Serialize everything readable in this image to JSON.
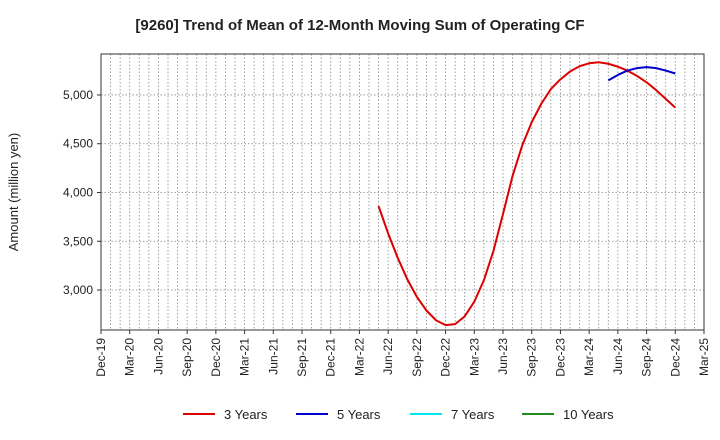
{
  "chart_data": {
    "type": "line",
    "title": "[9260]  Trend of Mean of 12-Month Moving Sum of Operating CF",
    "ylabel": "Amount (million yen)",
    "xlabel": "",
    "ylim": [
      2590,
      5420
    ],
    "yticks": [
      3000,
      3500,
      4000,
      4500,
      5000
    ],
    "ytick_labels": [
      "3,000",
      "3,500",
      "4,000",
      "4,500",
      "5,000"
    ],
    "x_start": "Dec-19",
    "x_end": "Mar-25",
    "x_tick_labels": [
      "Dec-19",
      "Mar-20",
      "Jun-20",
      "Sep-20",
      "Dec-20",
      "Mar-21",
      "Jun-21",
      "Sep-21",
      "Dec-21",
      "Mar-22",
      "Jun-22",
      "Sep-22",
      "Dec-22",
      "Mar-23",
      "Jun-23",
      "Sep-23",
      "Dec-23",
      "Mar-24",
      "Jun-24",
      "Sep-24",
      "Dec-24",
      "Mar-25"
    ],
    "grid": true,
    "legend_position": "bottom",
    "series": [
      {
        "name": "3 Years",
        "color": "#dd0000",
        "x": [
          "May-22",
          "Jun-22",
          "Jul-22",
          "Aug-22",
          "Sep-22",
          "Oct-22",
          "Nov-22",
          "Dec-22",
          "Jan-23",
          "Feb-23",
          "Mar-23",
          "Apr-23",
          "May-23",
          "Jun-23",
          "Jul-23",
          "Aug-23",
          "Sep-23",
          "Oct-23",
          "Nov-23",
          "Dec-23",
          "Jan-24",
          "Feb-24",
          "Mar-24",
          "Apr-24",
          "May-24",
          "Jun-24",
          "Jul-24",
          "Aug-24",
          "Sep-24",
          "Oct-24",
          "Nov-24",
          "Dec-24"
        ],
        "values": [
          3860,
          3580,
          3330,
          3110,
          2930,
          2790,
          2690,
          2640,
          2650,
          2730,
          2880,
          3100,
          3400,
          3780,
          4170,
          4480,
          4720,
          4910,
          5060,
          5160,
          5240,
          5295,
          5325,
          5335,
          5320,
          5290,
          5250,
          5195,
          5130,
          5050,
          4960,
          4870
        ]
      },
      {
        "name": "5 Years",
        "color": "#0000cc",
        "x": [
          "May-24",
          "Jun-24",
          "Jul-24",
          "Aug-24",
          "Sep-24",
          "Oct-24",
          "Nov-24",
          "Dec-24"
        ],
        "values": [
          5150,
          5205,
          5250,
          5275,
          5285,
          5275,
          5250,
          5220
        ]
      },
      {
        "name": "7 Years",
        "color": "#00e5ee",
        "x": [],
        "values": []
      },
      {
        "name": "10 Years",
        "color": "#228b22",
        "x": [],
        "values": []
      }
    ]
  }
}
